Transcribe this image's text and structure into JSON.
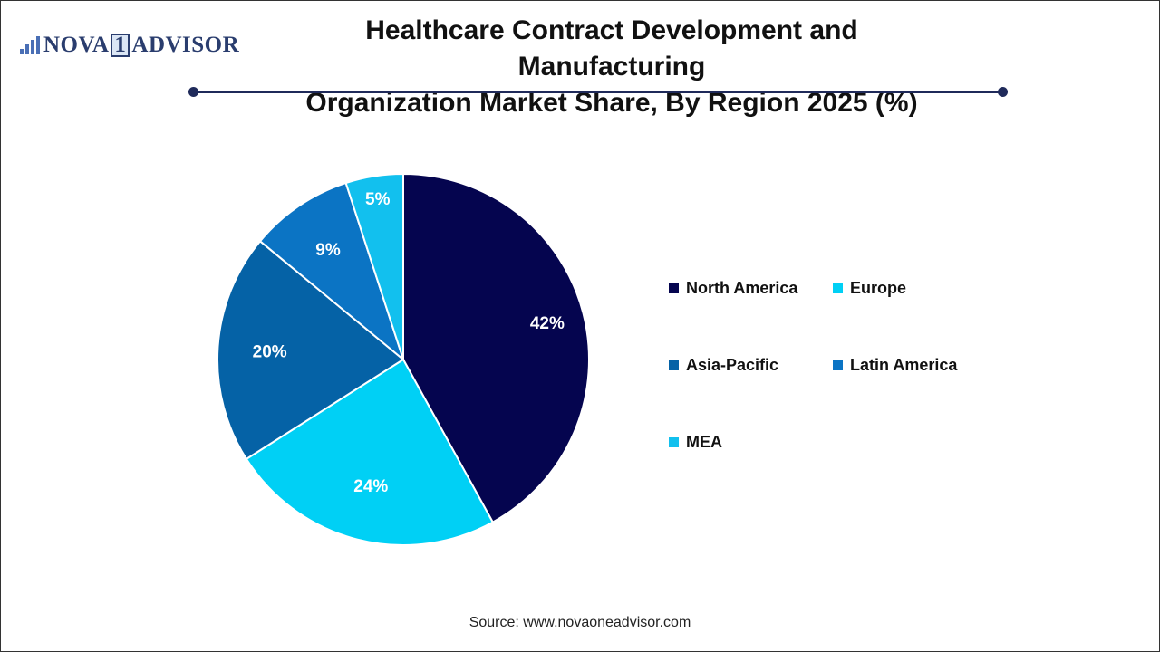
{
  "logo": {
    "text_left": "NOVA",
    "text_mid": "1",
    "text_right": "ADVISOR"
  },
  "title_line1": "Healthcare Contract Development and Manufacturing",
  "title_line2": "Organization Market Share, By Region 2025 (%)",
  "source": "Source: www.novaoneadvisor.com",
  "chart_data": {
    "type": "pie",
    "title": "Healthcare Contract Development and Manufacturing Organization Market Share, By Region 2025 (%)",
    "legend_position": "right",
    "slices": [
      {
        "label": "North America",
        "value": 42,
        "display": "42%",
        "color": "#05054f"
      },
      {
        "label": "Europe",
        "value": 24,
        "display": "24%",
        "color": "#00d0f5"
      },
      {
        "label": "Asia-Pacific",
        "value": 20,
        "display": "20%",
        "color": "#0562a6"
      },
      {
        "label": "Latin America",
        "value": 9,
        "display": "9%",
        "color": "#0b74c4"
      },
      {
        "label": "MEA",
        "value": 5,
        "display": "5%",
        "color": "#12c0ee"
      }
    ]
  }
}
